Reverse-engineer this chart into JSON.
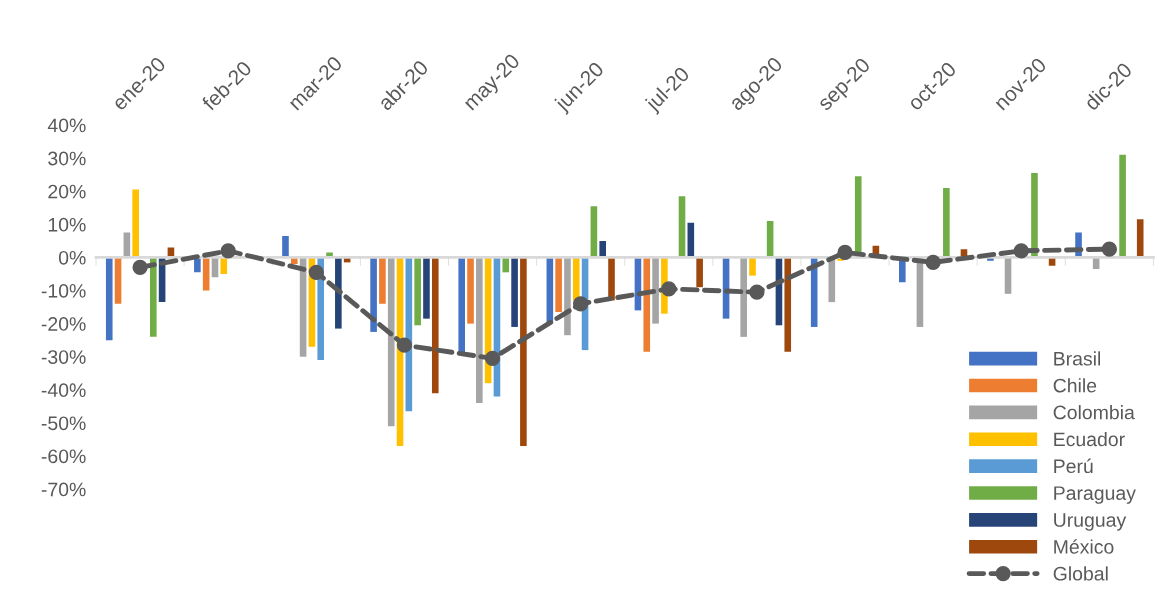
{
  "chart_data": {
    "type": "bar",
    "categories": [
      "ene-20",
      "feb-20",
      "mar-20",
      "abr-20",
      "may-20",
      "jun-20",
      "jul-20",
      "ago-20",
      "sep-20",
      "oct-20",
      "nov-20",
      "dic-20"
    ],
    "series": [
      {
        "name": "Brasil",
        "color": "#4472c4",
        "values": [
          -25,
          -4.5,
          6.5,
          -22.5,
          -29,
          -20,
          -16,
          -18.5,
          -21,
          -7.5,
          -1,
          7.5
        ]
      },
      {
        "name": "Chile",
        "color": "#ed7d31",
        "values": [
          -14,
          -10,
          -2,
          -14,
          -20,
          -16.5,
          -28.5,
          null,
          null,
          null,
          null,
          null
        ]
      },
      {
        "name": "Colombia",
        "color": "#a5a5a5",
        "values": [
          7.5,
          -6,
          -30,
          -51,
          -44,
          -23.5,
          -20,
          -24,
          -13.5,
          -21,
          -11,
          -3.5
        ]
      },
      {
        "name": "Ecuador",
        "color": "#ffc000",
        "values": [
          20.5,
          -5,
          -27,
          -57,
          -38,
          -13,
          -17,
          -5.5,
          -1,
          null,
          null,
          null
        ]
      },
      {
        "name": "Perú",
        "color": "#5b9bd5",
        "values": [
          null,
          null,
          -31,
          -46.5,
          -42,
          -28,
          null,
          null,
          null,
          null,
          null,
          null
        ]
      },
      {
        "name": "Paraguay",
        "color": "#70ad47",
        "values": [
          -24,
          null,
          1.5,
          -20.5,
          -4.5,
          15.5,
          18.5,
          11,
          24.5,
          21,
          25.5,
          31
        ]
      },
      {
        "name": "Uruguay",
        "color": "#264478",
        "values": [
          -13.5,
          null,
          -21.5,
          -18.5,
          -21,
          5,
          10.5,
          -20.5,
          null,
          null,
          null,
          null
        ]
      },
      {
        "name": "México",
        "color": "#9e480e",
        "values": [
          3,
          null,
          -1.5,
          -41,
          -57,
          -13,
          -9,
          -28.5,
          3.5,
          2.5,
          -2.5,
          11.5
        ]
      },
      {
        "name": "Global",
        "type": "line",
        "color": "#595959",
        "line_style": "dashed",
        "marker": "circle",
        "values": [
          -3,
          2,
          -4.5,
          -26.5,
          -30.5,
          -14,
          -9.5,
          -10.5,
          1.5,
          -1.5,
          2,
          2.5
        ]
      }
    ],
    "ylim": [
      -70,
      40
    ],
    "yticks": [
      {
        "value": 40,
        "label": "40%"
      },
      {
        "value": 30,
        "label": "30%"
      },
      {
        "value": 20,
        "label": "20%"
      },
      {
        "value": 10,
        "label": "10%"
      },
      {
        "value": 0,
        "label": "0%"
      },
      {
        "value": -10,
        "label": "-10%"
      },
      {
        "value": -20,
        "label": "-20%"
      },
      {
        "value": -30,
        "label": "-30%"
      },
      {
        "value": -40,
        "label": "-40%"
      },
      {
        "value": -50,
        "label": "-50%"
      },
      {
        "value": -60,
        "label": "-60%"
      },
      {
        "value": -70,
        "label": "-70%"
      }
    ],
    "legend": "bottom right"
  }
}
